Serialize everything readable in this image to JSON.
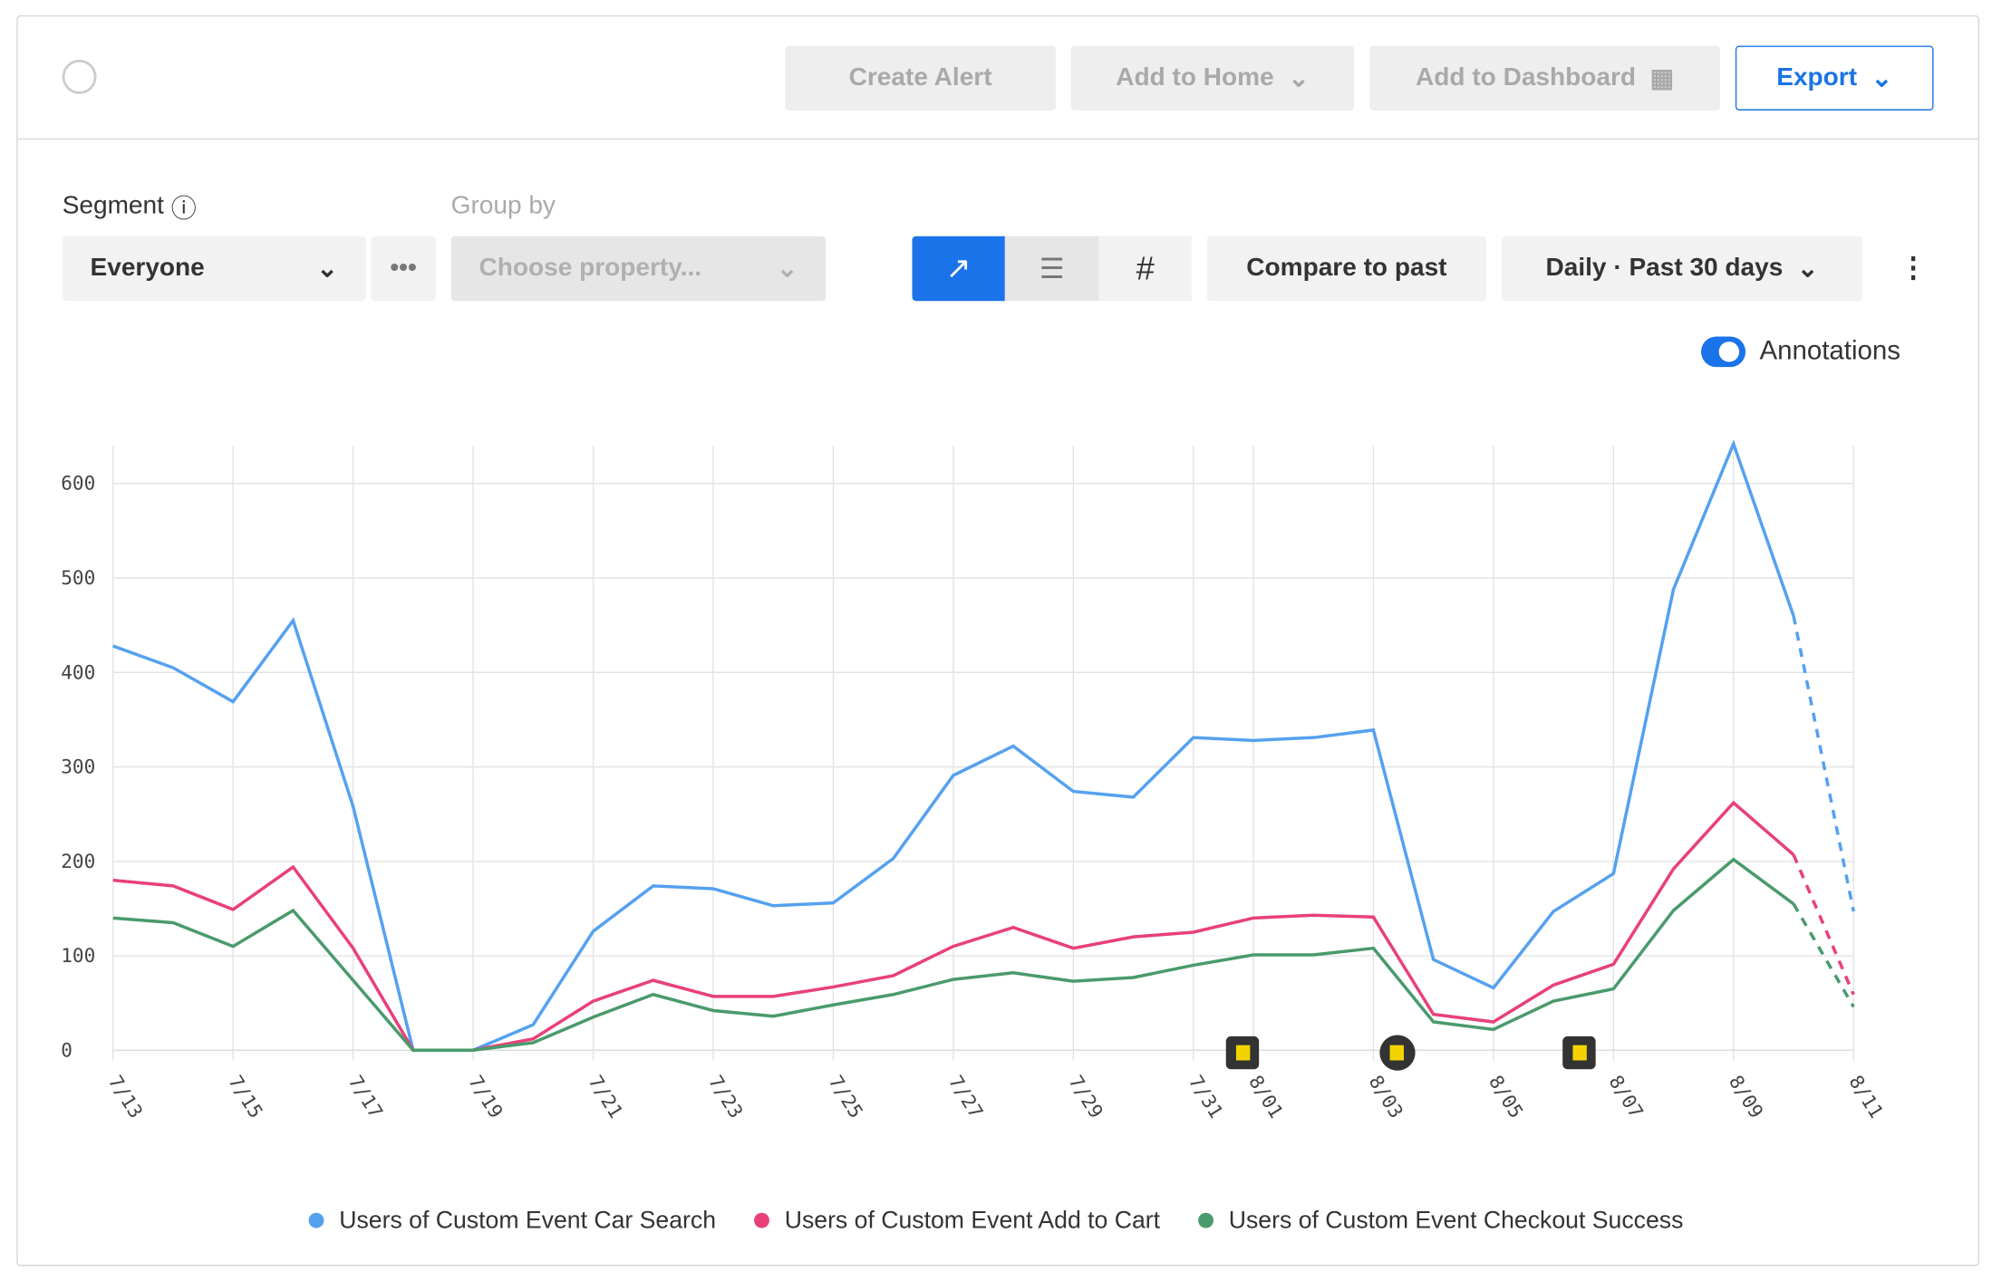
{
  "toolbar": {
    "create_alert": "Create Alert",
    "add_to_home": "Add to Home",
    "add_to_dashboard": "Add to Dashboard",
    "export": "Export"
  },
  "controls": {
    "segment_label": "Segment",
    "segment_value": "Everyone",
    "group_by_label": "Group by",
    "group_by_placeholder": "Choose property...",
    "compare": "Compare to past",
    "range": "Daily · Past 30 days",
    "annotations": "Annotations"
  },
  "chart_data": {
    "type": "line",
    "categories": [
      "7/13",
      null,
      "7/15",
      null,
      "7/17",
      null,
      "7/19",
      null,
      "7/21",
      null,
      "7/23",
      null,
      "7/25",
      null,
      "7/27",
      null,
      "7/29",
      null,
      "7/31",
      "8/01",
      null,
      "8/03",
      null,
      "8/05",
      null,
      "8/07",
      null,
      "8/09",
      null,
      "8/11"
    ],
    "series": [
      {
        "name": "Users of Custom Event Car Search",
        "color": "#55a1f0",
        "values": [
          428,
          405,
          369,
          455,
          258,
          0,
          0,
          27,
          126,
          174,
          171,
          153,
          156,
          203,
          291,
          322,
          274,
          268,
          331,
          328,
          331,
          339,
          96,
          66,
          147,
          187,
          488,
          642,
          460,
          147
        ]
      },
      {
        "name": "Users of Custom Event Add to Cart",
        "color": "#e8407a",
        "values": [
          180,
          174,
          149,
          194,
          108,
          0,
          0,
          12,
          52,
          74,
          57,
          57,
          67,
          79,
          110,
          130,
          108,
          120,
          125,
          140,
          143,
          141,
          38,
          30,
          69,
          91,
          192,
          262,
          207,
          59
        ]
      },
      {
        "name": "Users of Custom Event Checkout Success",
        "color": "#4a9a6c",
        "values": [
          140,
          135,
          110,
          148,
          74,
          0,
          0,
          8,
          35,
          59,
          42,
          36,
          48,
          59,
          75,
          82,
          73,
          77,
          90,
          101,
          101,
          108,
          30,
          22,
          52,
          65,
          148,
          202,
          155,
          46
        ]
      }
    ],
    "ylim": [
      0,
      640
    ],
    "yticks": [
      0,
      100,
      200,
      300,
      400,
      500,
      600
    ],
    "grid": true,
    "last_point_incomplete": true
  }
}
